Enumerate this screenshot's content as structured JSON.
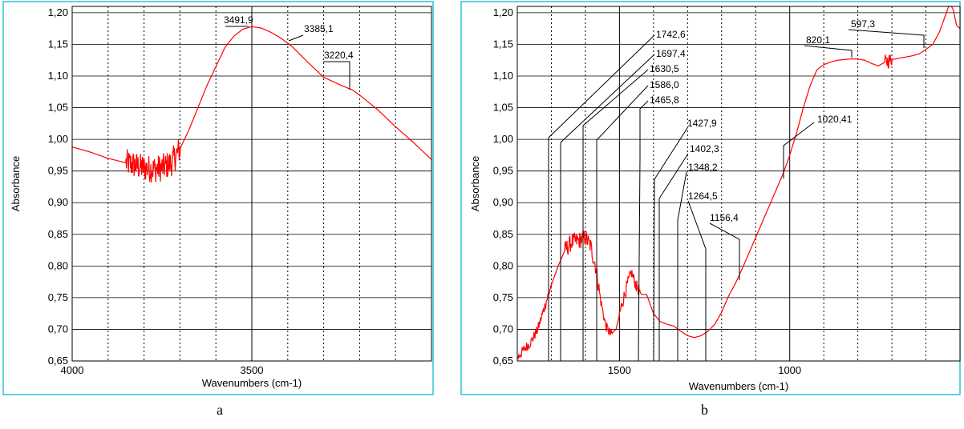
{
  "panel_labels": [
    "a",
    "b"
  ],
  "chart_data": [
    {
      "type": "line",
      "xlabel": "Wavenumbers (cm-1)",
      "ylabel": "Absorbance",
      "xlim": [
        4000,
        3000
      ],
      "ylim": [
        0.65,
        1.21
      ],
      "x_ticks": [
        {
          "value": 4000,
          "label": "4000"
        },
        {
          "value": 3500,
          "label": "3500"
        }
      ],
      "y_ticks": [
        {
          "value": 1.2,
          "label": "1,20"
        },
        {
          "value": 1.15,
          "label": "1,15"
        },
        {
          "value": 1.1,
          "label": "1,10"
        },
        {
          "value": 1.05,
          "label": "1,05"
        },
        {
          "value": 1.0,
          "label": "1,00"
        },
        {
          "value": 0.95,
          "label": "0,95"
        },
        {
          "value": 0.9,
          "label": "0,90"
        },
        {
          "value": 0.85,
          "label": "0,85"
        },
        {
          "value": 0.8,
          "label": "0,80"
        },
        {
          "value": 0.75,
          "label": "0,75"
        },
        {
          "value": 0.7,
          "label": "0,70"
        },
        {
          "value": 0.65,
          "label": "0,65"
        }
      ],
      "minor_x_grid": [
        3900,
        3800,
        3700,
        3600,
        3400,
        3300,
        3200,
        3100
      ],
      "major_x_grid": [
        3500
      ],
      "grid": true,
      "series_color": "#ff0000",
      "series": [
        {
          "x": [
            4000,
            3950,
            3900,
            3850,
            3800,
            3775,
            3750,
            3725,
            3700,
            3675,
            3650,
            3625,
            3600,
            3575,
            3550,
            3525,
            3500,
            3475,
            3450,
            3425,
            3400,
            3385,
            3350,
            3300,
            3250,
            3220,
            3200,
            3150,
            3100,
            3050,
            3000
          ],
          "y": [
            0.988,
            0.98,
            0.97,
            0.963,
            0.955,
            0.953,
            0.955,
            0.962,
            0.985,
            1.015,
            1.05,
            1.085,
            1.115,
            1.145,
            1.163,
            1.174,
            1.178,
            1.176,
            1.17,
            1.162,
            1.152,
            1.145,
            1.125,
            1.098,
            1.085,
            1.078,
            1.07,
            1.047,
            1.02,
            0.995,
            0.968
          ],
          "noise": [
            [
              3850,
              3700,
              0.022
            ]
          ]
        }
      ],
      "annotations": [
        {
          "text": "3491,9",
          "x": 3491.9,
          "y": 1.178
        },
        {
          "text": "3385,1",
          "x": 3385.1,
          "y": 1.145
        },
        {
          "text": "3220,4",
          "x": 3220.4,
          "y": 1.078
        }
      ]
    },
    {
      "type": "line",
      "xlabel": "Wavenumbers (cm-1)",
      "ylabel": "Absorbance",
      "xlim": [
        1800,
        500
      ],
      "ylim": [
        0.65,
        1.21
      ],
      "x_ticks": [
        {
          "value": 1500,
          "label": "1500"
        },
        {
          "value": 1000,
          "label": "1000"
        }
      ],
      "y_ticks": [
        {
          "value": 1.2,
          "label": "1,20"
        },
        {
          "value": 1.15,
          "label": "1,15"
        },
        {
          "value": 1.1,
          "label": "1,10"
        },
        {
          "value": 1.05,
          "label": "1,05"
        },
        {
          "value": 1.0,
          "label": "1,00"
        },
        {
          "value": 0.95,
          "label": "0,95"
        },
        {
          "value": 0.9,
          "label": "0,90"
        },
        {
          "value": 0.85,
          "label": "0,85"
        },
        {
          "value": 0.8,
          "label": "0,80"
        },
        {
          "value": 0.75,
          "label": "0,75"
        },
        {
          "value": 0.7,
          "label": "0,70"
        },
        {
          "value": 0.65,
          "label": "0,65"
        }
      ],
      "minor_x_grid": [
        1700,
        1600,
        1400,
        1300,
        1200,
        1100,
        900,
        800,
        700,
        600
      ],
      "major_x_grid": [
        1500,
        1000,
        500
      ],
      "grid": true,
      "series_color": "#ff0000",
      "series": [
        {
          "x": [
            1800,
            1780,
            1760,
            1740,
            1720,
            1700,
            1680,
            1660,
            1640,
            1620,
            1600,
            1585,
            1570,
            1555,
            1540,
            1525,
            1510,
            1495,
            1480,
            1465,
            1450,
            1435,
            1420,
            1400,
            1380,
            1360,
            1340,
            1320,
            1300,
            1280,
            1260,
            1240,
            1220,
            1200,
            1180,
            1160,
            1140,
            1120,
            1100,
            1080,
            1060,
            1040,
            1020,
            1000,
            980,
            960,
            940,
            920,
            900,
            880,
            860,
            840,
            820,
            800,
            780,
            760,
            740,
            720,
            700,
            680,
            660,
            640,
            620,
            600,
            580,
            560,
            540,
            530,
            520,
            510,
            500
          ],
          "y": [
            0.655,
            0.668,
            0.68,
            0.7,
            0.735,
            0.77,
            0.8,
            0.825,
            0.838,
            0.84,
            0.845,
            0.832,
            0.8,
            0.745,
            0.705,
            0.692,
            0.7,
            0.735,
            0.765,
            0.79,
            0.768,
            0.755,
            0.755,
            0.725,
            0.712,
            0.708,
            0.705,
            0.697,
            0.69,
            0.687,
            0.69,
            0.697,
            0.708,
            0.727,
            0.752,
            0.772,
            0.795,
            0.82,
            0.845,
            0.87,
            0.895,
            0.92,
            0.945,
            0.975,
            1.01,
            1.05,
            1.085,
            1.11,
            1.118,
            1.122,
            1.125,
            1.126,
            1.127,
            1.127,
            1.125,
            1.12,
            1.116,
            1.122,
            1.126,
            1.128,
            1.13,
            1.132,
            1.135,
            1.142,
            1.15,
            1.17,
            1.2,
            1.215,
            1.205,
            1.18,
            1.175
          ],
          "noise": [
            [
              1800,
              1700,
              0.008
            ],
            [
              1660,
              1560,
              0.014
            ],
            [
              1560,
              1520,
              0.008
            ],
            [
              1500,
              1440,
              0.01
            ],
            [
              720,
              700,
              0.012
            ]
          ]
        }
      ],
      "annotations": [
        {
          "text": "1742,6",
          "x": 1742.6,
          "y": 1.005
        },
        {
          "text": "1697,4",
          "x": 1697.4,
          "y": 0.998
        },
        {
          "text": "1630,5",
          "x": 1630.5,
          "y": 1.0
        },
        {
          "text": "1586,0",
          "x": 1586.0,
          "y": 1.003
        },
        {
          "text": "1465,8",
          "x": 1465.8,
          "y": 0.972
        },
        {
          "text": "1427,9",
          "x": 1427.9,
          "y": 0.94
        },
        {
          "text": "1402,3",
          "x": 1402.3,
          "y": 0.905
        },
        {
          "text": "1348,2",
          "x": 1348.2,
          "y": 0.875
        },
        {
          "text": "1264,5",
          "x": 1264.5,
          "y": 0.808
        },
        {
          "text": "1156,4",
          "x": 1156.4,
          "y": 0.79
        },
        {
          "text": "1020,41",
          "x": 1020.41,
          "y": 0.935
        },
        {
          "text": "820,1",
          "x": 820.1,
          "y": 1.127
        },
        {
          "text": "597,3",
          "x": 597.3,
          "y": 1.14
        }
      ]
    }
  ]
}
